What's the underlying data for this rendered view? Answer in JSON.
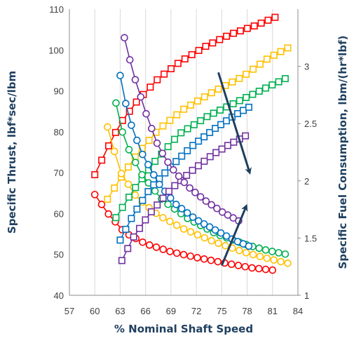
{
  "chart_data": {
    "type": "scatter",
    "xlabel": "% Nominal Shaft Speed",
    "ylabel_left": "Specific Thrust, lbf*sec/lbm",
    "ylabel_right": "Specific Fuel Consumption, lbm/(hr*lbf)",
    "xlim": [
      57,
      84
    ],
    "x_ticks": [
      57,
      60,
      63,
      66,
      69,
      72,
      75,
      78,
      81,
      84
    ],
    "ylim_left": [
      40,
      110
    ],
    "y_ticks_left": [
      40,
      50,
      60,
      70,
      80,
      90,
      100,
      110
    ],
    "ylim_right": [
      1,
      3.5
    ],
    "y_ticks_right": [
      1,
      1.5,
      2,
      2.5,
      3
    ],
    "grid": "vertical",
    "legend": "none",
    "thrust_series_marker": "square",
    "sfc_series_marker": "circle",
    "series": [
      {
        "color": "#ff0000",
        "marker": "square",
        "axis": "left",
        "x_start": 60.0,
        "x_end": 81.3,
        "points": 27,
        "values": [
          [
            60.0,
            69.5
          ],
          [
            61.5,
            76.0
          ],
          [
            63.0,
            82.0
          ],
          [
            65.0,
            87.5
          ],
          [
            67.5,
            93.0
          ],
          [
            70.0,
            97.0
          ],
          [
            73.0,
            100.8
          ],
          [
            76.0,
            103.8
          ],
          [
            79.0,
            106.0
          ],
          [
            81.3,
            108.0
          ]
        ]
      },
      {
        "color": "#ff0000",
        "marker": "circle",
        "axis": "right",
        "x_start": 60.0,
        "x_end": 81.0,
        "points": 27,
        "values": [
          [
            60.0,
            1.88
          ],
          [
            61.5,
            1.72
          ],
          [
            63.5,
            1.55
          ],
          [
            66.0,
            1.45
          ],
          [
            69.0,
            1.38
          ],
          [
            72.0,
            1.33
          ],
          [
            75.5,
            1.28
          ],
          [
            78.5,
            1.24
          ],
          [
            81.0,
            1.22
          ]
        ]
      },
      {
        "color": "#ffc000",
        "marker": "square",
        "axis": "left",
        "x_start": 61.5,
        "x_end": 82.8,
        "points": 27,
        "values": [
          [
            61.5,
            63.5
          ],
          [
            63.0,
            68.5
          ],
          [
            65.0,
            74.5
          ],
          [
            67.5,
            80.5
          ],
          [
            70.5,
            85.5
          ],
          [
            74.0,
            89.8
          ],
          [
            77.5,
            93.5
          ],
          [
            80.5,
            98.0
          ],
          [
            82.8,
            100.5
          ]
        ]
      },
      {
        "color": "#ffc000",
        "marker": "circle",
        "axis": "right",
        "x_start": 61.5,
        "x_end": 82.8,
        "points": 27,
        "values": [
          [
            61.5,
            2.47
          ],
          [
            63.0,
            2.08
          ],
          [
            65.0,
            1.85
          ],
          [
            67.5,
            1.7
          ],
          [
            70.5,
            1.58
          ],
          [
            74.0,
            1.47
          ],
          [
            77.5,
            1.38
          ],
          [
            80.5,
            1.32
          ],
          [
            82.8,
            1.28
          ]
        ]
      },
      {
        "color": "#00b050",
        "marker": "square",
        "axis": "left",
        "x_start": 62.5,
        "x_end": 82.5,
        "points": 27,
        "values": [
          [
            62.5,
            59.0
          ],
          [
            64.5,
            65.5
          ],
          [
            67.0,
            72.5
          ],
          [
            70.0,
            79.5
          ],
          [
            73.5,
            84.0
          ],
          [
            77.0,
            87.5
          ],
          [
            80.0,
            90.5
          ],
          [
            82.5,
            93.0
          ]
        ]
      },
      {
        "color": "#00b050",
        "marker": "circle",
        "axis": "right",
        "x_start": 62.5,
        "x_end": 82.5,
        "points": 27,
        "values": [
          [
            62.5,
            2.68
          ],
          [
            63.5,
            2.35
          ],
          [
            65.5,
            2.06
          ],
          [
            68.0,
            1.83
          ],
          [
            71.0,
            1.67
          ],
          [
            74.5,
            1.53
          ],
          [
            78.0,
            1.44
          ],
          [
            80.5,
            1.39
          ],
          [
            82.5,
            1.36
          ]
        ]
      },
      {
        "color": "#0070c0",
        "marker": "square",
        "axis": "left",
        "x_start": 63.0,
        "x_end": 78.2,
        "points": 24,
        "values": [
          [
            63.0,
            53.5
          ],
          [
            64.5,
            59.5
          ],
          [
            66.5,
            66.0
          ],
          [
            69.0,
            71.5
          ],
          [
            71.5,
            76.5
          ],
          [
            74.0,
            80.5
          ],
          [
            76.5,
            84.0
          ],
          [
            78.2,
            86.0
          ]
        ]
      },
      {
        "color": "#0070c0",
        "marker": "circle",
        "axis": "right",
        "x_start": 63.0,
        "x_end": 78.2,
        "points": 24,
        "values": [
          [
            63.0,
            2.92
          ],
          [
            64.0,
            2.55
          ],
          [
            65.5,
            2.25
          ],
          [
            67.5,
            1.98
          ],
          [
            69.5,
            1.8
          ],
          [
            72.0,
            1.66
          ],
          [
            74.5,
            1.56
          ],
          [
            76.5,
            1.48
          ],
          [
            78.2,
            1.43
          ]
        ]
      },
      {
        "color": "#7030a0",
        "marker": "square",
        "axis": "left",
        "x_start": 63.2,
        "x_end": 77.8,
        "points": 22,
        "values": [
          [
            63.2,
            48.5
          ],
          [
            64.5,
            54.0
          ],
          [
            66.5,
            60.0
          ],
          [
            69.0,
            66.0
          ],
          [
            71.5,
            70.5
          ],
          [
            74.0,
            74.5
          ],
          [
            76.0,
            77.0
          ],
          [
            77.8,
            79.0
          ]
        ]
      },
      {
        "color": "#7030a0",
        "marker": "circle",
        "axis": "right",
        "x_start": 63.5,
        "x_end": 77.0,
        "points": 22,
        "values": [
          [
            63.5,
            3.25
          ],
          [
            64.5,
            2.95
          ],
          [
            66.0,
            2.6
          ],
          [
            67.5,
            2.3
          ],
          [
            69.0,
            2.12
          ],
          [
            71.0,
            1.95
          ],
          [
            73.0,
            1.83
          ],
          [
            75.0,
            1.73
          ],
          [
            77.0,
            1.65
          ]
        ]
      }
    ],
    "annotations": [
      {
        "type": "arrow",
        "color": "#1f3f5f",
        "from": [
          74.6,
          94.5
        ],
        "to": [
          78.3,
          70.0
        ],
        "axis": "left"
      },
      {
        "type": "arrow",
        "color": "#1f3f5f",
        "from": [
          75.0,
          1.26
        ],
        "to": [
          77.9,
          1.78
        ],
        "axis": "right"
      }
    ]
  }
}
